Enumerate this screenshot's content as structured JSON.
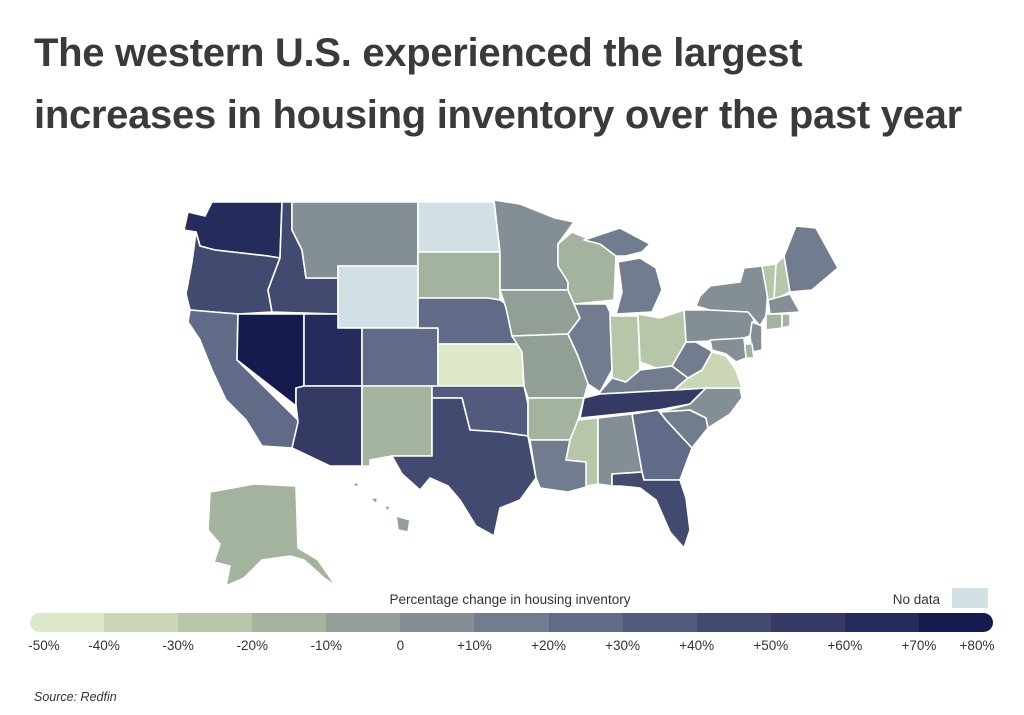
{
  "title": "The western U.S. experienced the largest increases in housing inventory over the past year",
  "legend": {
    "title": "Percentage change in housing inventory",
    "no_data_label": "No data",
    "no_data_color": "#d2dfe4",
    "bins": [
      {
        "label": "-50%",
        "color": "#dde8c8"
      },
      {
        "label": "-40%",
        "color": "#cad6b6"
      },
      {
        "label": "-30%",
        "color": "#b7c5a8"
      },
      {
        "label": "-20%",
        "color": "#a4b39d"
      },
      {
        "label": "-10%",
        "color": "#929f96"
      },
      {
        "label": "0",
        "color": "#838e95"
      },
      {
        "label": "+10%",
        "color": "#717d8f"
      },
      {
        "label": "+20%",
        "color": "#616b87"
      },
      {
        "label": "+30%",
        "color": "#525a7d"
      },
      {
        "label": "+40%",
        "color": "#434a70"
      },
      {
        "label": "+50%",
        "color": "#343a64"
      },
      {
        "label": "+60%",
        "color": "#252b5a"
      },
      {
        "label": "+70%",
        "color": "#151b4e"
      }
    ],
    "last_label": "+80%"
  },
  "source": "Source: Redfin",
  "states": {
    "WA": "#252b5a",
    "OR": "#434a70",
    "CA": "#616b87",
    "ID": "#434a70",
    "NV": "#151b4e",
    "MT": "#838e95",
    "WY": "#d2dfe4",
    "UT": "#252b5a",
    "AZ": "#343a64",
    "CO": "#616b87",
    "NM": "#a4b39d",
    "ND": "#d2dfe4",
    "SD": "#a4b39d",
    "NE": "#616b87",
    "KS": "#dde8c8",
    "OK": "#525a7d",
    "TX": "#434a70",
    "MN": "#838e95",
    "IA": "#929f96",
    "MO": "#929f96",
    "AR": "#a4b39d",
    "LA": "#717d8f",
    "WI": "#a4b39d",
    "IL": "#717d8f",
    "MI": "#717d8f",
    "IN": "#b7c5a8",
    "OH": "#b7c5a8",
    "KY": "#717d8f",
    "TN": "#343a64",
    "MS": "#b7c5a8",
    "AL": "#838e95",
    "GA": "#616b87",
    "FL": "#434a70",
    "SC": "#717d8f",
    "NC": "#838e95",
    "VA": "#cad6b6",
    "WV": "#717d8f",
    "PA": "#838e95",
    "NY": "#838e95",
    "VT": "#b7c5a8",
    "NH": "#b7c5a8",
    "ME": "#717d8f",
    "MA": "#838e95",
    "CT": "#a4b39d",
    "RI": "#a4b39d",
    "NJ": "#838e95",
    "DE": "#a4b39d",
    "MD": "#838e95",
    "AK": "#a4b39d",
    "HI": "#929f96"
  }
}
